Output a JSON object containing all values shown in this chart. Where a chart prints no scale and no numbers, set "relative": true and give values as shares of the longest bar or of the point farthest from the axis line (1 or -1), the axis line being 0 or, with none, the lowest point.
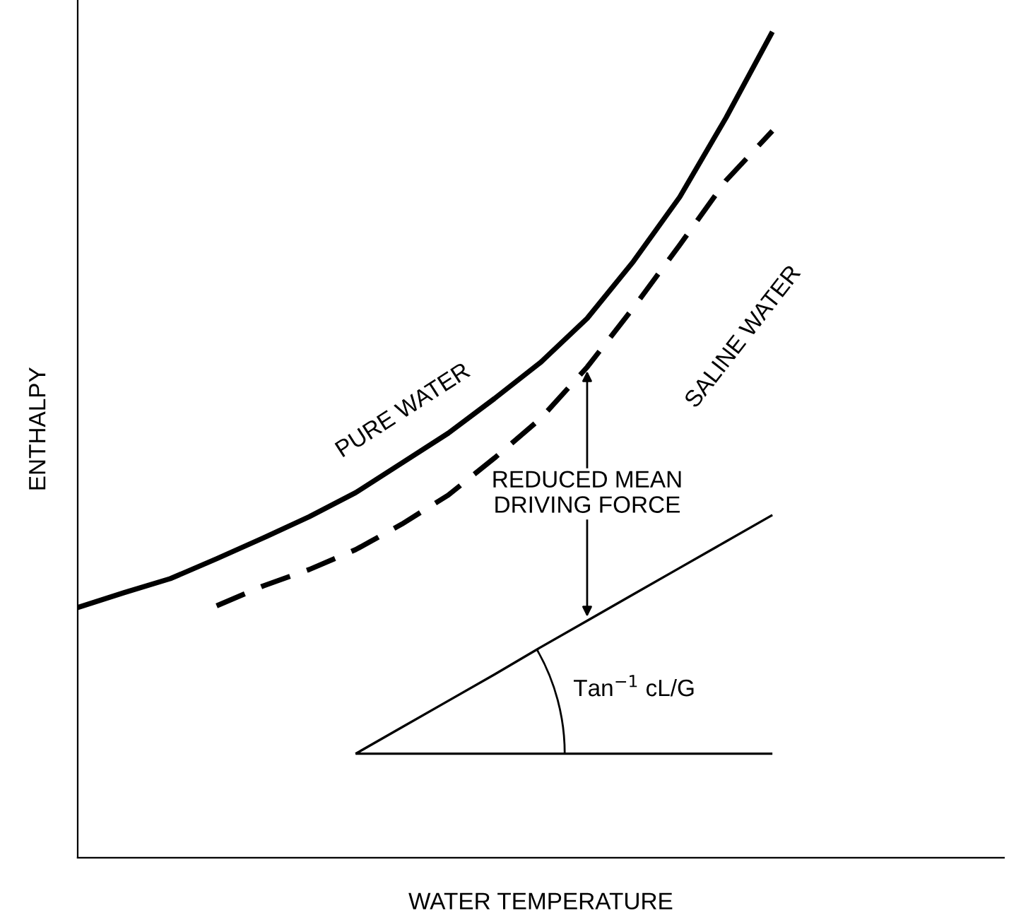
{
  "chart_data": {
    "type": "line",
    "relative": true,
    "xlabel": "WATER TEMPERATURE",
    "ylabel": "ENTHALPY",
    "categories": [
      null,
      null,
      null,
      null,
      null,
      null,
      null,
      null,
      null,
      null,
      null,
      null,
      null,
      null,
      null,
      null
    ],
    "series": [
      {
        "name": "PURE WATER",
        "color": "#000000",
        "line_style": "solid",
        "values": [
          0.303,
          0.321,
          0.338,
          0.362,
          0.387,
          0.413,
          0.442,
          0.478,
          0.514,
          0.556,
          0.6,
          0.653,
          0.722,
          0.8,
          0.896,
          1
        ]
      },
      {
        "name": "SALINE WATER",
        "color": "#000000",
        "line_style": "dashed",
        "values": [
          null,
          null,
          null,
          0.305,
          0.329,
          0.349,
          0.373,
          0.404,
          0.439,
          0.484,
          0.532,
          0.594,
          0.666,
          0.742,
          0.82,
          0.88
        ]
      },
      {
        "color": "#000000",
        "line_style": "solid",
        "values": [
          null,
          null,
          null,
          null,
          null,
          null,
          0.126,
          0.158,
          0.19,
          0.222,
          0.255,
          0.287,
          0.319,
          0.351,
          0.383,
          0.415
        ]
      },
      {
        "color": "#000000",
        "line_style": "solid",
        "values": [
          null,
          null,
          null,
          null,
          null,
          null,
          0.126,
          0.126,
          0.126,
          0.126,
          0.126,
          0.126,
          0.126,
          0.126,
          0.126,
          0.126
        ]
      }
    ],
    "annotations": [
      "REDUCED MEAN\nDRIVING FORCE",
      "Tan$^{−1}$ cL/G"
    ],
    "legend": false
  }
}
